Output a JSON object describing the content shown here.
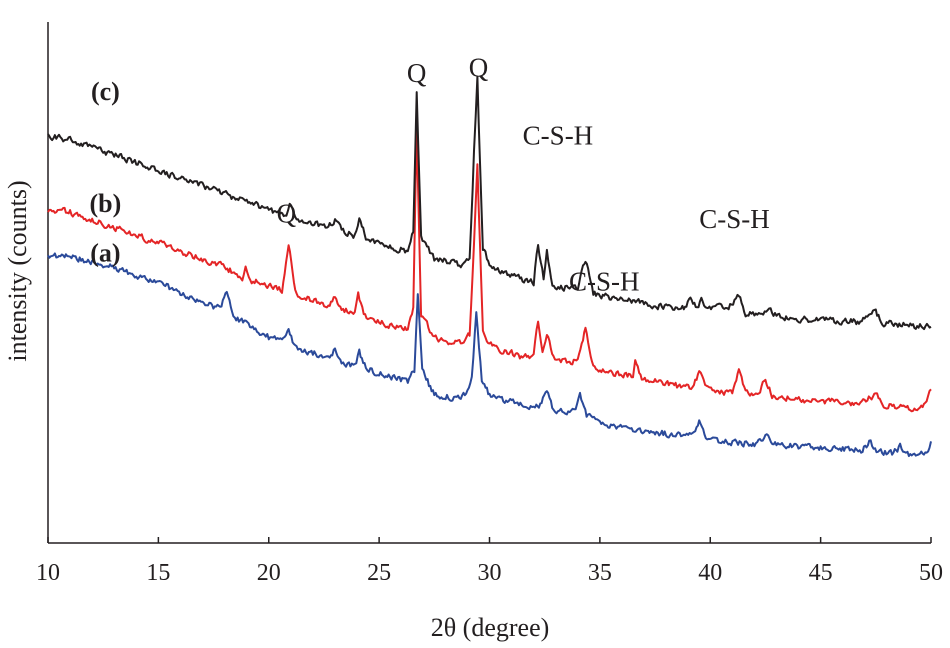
{
  "chart_data": {
    "type": "line",
    "title": "",
    "xlabel": "2θ (degree)",
    "ylabel": "intensity (counts)",
    "xlim": [
      10,
      50
    ],
    "ylim": [
      0,
      100
    ],
    "xticks": [
      10,
      15,
      20,
      25,
      30,
      35,
      40,
      45,
      50
    ],
    "grid": false,
    "legend": "none",
    "series": [
      {
        "name": "(a)",
        "color": "#2b4a9a",
        "points": [
          [
            10,
            55
          ],
          [
            11,
            55
          ],
          [
            12,
            54
          ],
          [
            13,
            53
          ],
          [
            14,
            51
          ],
          [
            15,
            50
          ],
          [
            16,
            48
          ],
          [
            17,
            46
          ],
          [
            17.8,
            45
          ],
          [
            18.1,
            48
          ],
          [
            18.4,
            43
          ],
          [
            18.9,
            42.5
          ],
          [
            19.4,
            41
          ],
          [
            20,
            39.5
          ],
          [
            20.6,
            38.5
          ],
          [
            20.9,
            41
          ],
          [
            21.2,
            37.5
          ],
          [
            22,
            36.5
          ],
          [
            22.7,
            35.5
          ],
          [
            23,
            37
          ],
          [
            23.3,
            34.8
          ],
          [
            23.9,
            34
          ],
          [
            24.1,
            36.5
          ],
          [
            24.4,
            33.5
          ],
          [
            25,
            32.5
          ],
          [
            25.8,
            31.5
          ],
          [
            26.3,
            31
          ],
          [
            26.6,
            33
          ],
          [
            26.75,
            48
          ],
          [
            26.95,
            33
          ],
          [
            27.5,
            28.5
          ],
          [
            28.2,
            28
          ],
          [
            28.7,
            28.3
          ],
          [
            29,
            28.8
          ],
          [
            29.2,
            32
          ],
          [
            29.4,
            44
          ],
          [
            29.65,
            31
          ],
          [
            30,
            28.5
          ],
          [
            30.5,
            27.5
          ],
          [
            31,
            27
          ],
          [
            31.6,
            26.5
          ],
          [
            32,
            26
          ],
          [
            32.3,
            26.5
          ],
          [
            32.6,
            29
          ],
          [
            32.9,
            25.5
          ],
          [
            33.5,
            25
          ],
          [
            33.9,
            25.5
          ],
          [
            34.1,
            28.5
          ],
          [
            34.4,
            24.5
          ],
          [
            35,
            23.5
          ],
          [
            35.5,
            22.5
          ],
          [
            36,
            22.2
          ],
          [
            36.5,
            21.8
          ],
          [
            37,
            21.5
          ],
          [
            38,
            21
          ],
          [
            38.8,
            20.8
          ],
          [
            39.2,
            20.5
          ],
          [
            39.5,
            23
          ],
          [
            39.8,
            20.2
          ],
          [
            40.5,
            19.5
          ],
          [
            41.2,
            19.3
          ],
          [
            42,
            19
          ],
          [
            42.5,
            20.5
          ],
          [
            43,
            18.8
          ],
          [
            44,
            18.5
          ],
          [
            45,
            18.2
          ],
          [
            46,
            18
          ],
          [
            46.9,
            17.8
          ],
          [
            47.2,
            19.5
          ],
          [
            47.6,
            17.6
          ],
          [
            48.3,
            17.3
          ],
          [
            48.6,
            18.5
          ],
          [
            49,
            17.2
          ],
          [
            49.5,
            17
          ],
          [
            49.8,
            17.2
          ],
          [
            50,
            19.5
          ]
        ]
      },
      {
        "name": "(b)",
        "color": "#e42526",
        "points": [
          [
            10,
            64
          ],
          [
            11,
            63.5
          ],
          [
            12,
            62
          ],
          [
            13,
            60.5
          ],
          [
            14,
            59
          ],
          [
            15,
            57.5
          ],
          [
            16,
            56
          ],
          [
            17,
            54.5
          ],
          [
            18,
            53
          ],
          [
            18.8,
            51
          ],
          [
            18.95,
            53.5
          ],
          [
            19.1,
            50.5
          ],
          [
            20,
            49.5
          ],
          [
            20.6,
            48.5
          ],
          [
            20.9,
            57.5
          ],
          [
            21.2,
            48
          ],
          [
            22,
            46.5
          ],
          [
            22.7,
            45.5
          ],
          [
            23,
            47
          ],
          [
            23.3,
            45
          ],
          [
            23.9,
            44
          ],
          [
            24.05,
            48.5
          ],
          [
            24.3,
            43.5
          ],
          [
            25,
            42.5
          ],
          [
            25.8,
            41.5
          ],
          [
            26.3,
            41
          ],
          [
            26.55,
            45
          ],
          [
            26.7,
            81
          ],
          [
            26.9,
            44
          ],
          [
            27.5,
            39.5
          ],
          [
            28.2,
            38.5
          ],
          [
            28.7,
            38.5
          ],
          [
            29.1,
            40
          ],
          [
            29.3,
            57
          ],
          [
            29.45,
            72.5
          ],
          [
            29.7,
            41
          ],
          [
            30,
            38
          ],
          [
            30.5,
            37
          ],
          [
            31,
            36.5
          ],
          [
            31.5,
            35.5
          ],
          [
            32,
            36
          ],
          [
            32.2,
            42.5
          ],
          [
            32.4,
            37
          ],
          [
            32.6,
            40.5
          ],
          [
            32.9,
            35.5
          ],
          [
            33.5,
            35
          ],
          [
            34,
            34.8
          ],
          [
            34.35,
            41
          ],
          [
            34.7,
            34
          ],
          [
            35.5,
            32.5
          ],
          [
            36,
            32.2
          ],
          [
            36.5,
            32
          ],
          [
            36.6,
            34.5
          ],
          [
            36.9,
            31.5
          ],
          [
            37.5,
            31
          ],
          [
            38,
            30.5
          ],
          [
            38.8,
            30
          ],
          [
            39.2,
            29.8
          ],
          [
            39.5,
            32.5
          ],
          [
            39.9,
            29.5
          ],
          [
            40.5,
            29
          ],
          [
            41,
            28.8
          ],
          [
            41.3,
            33
          ],
          [
            41.6,
            28.6
          ],
          [
            42.2,
            28.4
          ],
          [
            42.5,
            31.5
          ],
          [
            42.8,
            28.2
          ],
          [
            43.5,
            27.8
          ],
          [
            44.2,
            27.5
          ],
          [
            45,
            27.2
          ],
          [
            46,
            27
          ],
          [
            46.8,
            26.8
          ],
          [
            47.5,
            28.5
          ],
          [
            47.8,
            26.5
          ],
          [
            48.5,
            26.3
          ],
          [
            49,
            26.1
          ],
          [
            49.5,
            25.8
          ],
          [
            49.8,
            26.5
          ],
          [
            50,
            29.5
          ]
        ]
      },
      {
        "name": "(c)",
        "color": "#231f20",
        "points": [
          [
            10,
            78
          ],
          [
            11,
            77.5
          ],
          [
            12,
            76
          ],
          [
            13,
            74.5
          ],
          [
            14,
            73
          ],
          [
            15,
            71.5
          ],
          [
            16,
            70
          ],
          [
            17,
            68.5
          ],
          [
            18,
            67
          ],
          [
            19,
            65.5
          ],
          [
            20,
            64
          ],
          [
            20.8,
            63
          ],
          [
            20.95,
            65
          ],
          [
            21.2,
            62.5
          ],
          [
            22,
            61.5
          ],
          [
            22.7,
            60.5
          ],
          [
            23,
            62
          ],
          [
            23.3,
            60
          ],
          [
            23.9,
            59
          ],
          [
            24.1,
            62.5
          ],
          [
            24.4,
            58.5
          ],
          [
            25,
            57.5
          ],
          [
            25.8,
            56.5
          ],
          [
            26.3,
            56
          ],
          [
            26.55,
            60
          ],
          [
            26.7,
            86
          ],
          [
            26.9,
            59
          ],
          [
            27.5,
            54.5
          ],
          [
            28.2,
            54
          ],
          [
            28.7,
            53.5
          ],
          [
            29.1,
            55
          ],
          [
            29.3,
            75
          ],
          [
            29.45,
            89
          ],
          [
            29.7,
            57
          ],
          [
            30,
            53
          ],
          [
            30.5,
            52
          ],
          [
            31,
            51.5
          ],
          [
            31.5,
            50.5
          ],
          [
            32,
            50
          ],
          [
            32.2,
            57.5
          ],
          [
            32.45,
            51
          ],
          [
            32.6,
            56
          ],
          [
            32.85,
            49.5
          ],
          [
            33.5,
            49
          ],
          [
            34,
            48.8
          ],
          [
            34.35,
            54.5
          ],
          [
            34.7,
            48
          ],
          [
            35.5,
            47
          ],
          [
            36,
            46.7
          ],
          [
            36.5,
            46.5
          ],
          [
            37,
            46
          ],
          [
            37.5,
            45.5
          ],
          [
            38,
            45.2
          ],
          [
            38.8,
            45
          ],
          [
            39.1,
            46.5
          ],
          [
            39.4,
            45
          ],
          [
            39.6,
            47
          ],
          [
            39.9,
            44.8
          ],
          [
            40.3,
            46
          ],
          [
            40.7,
            44.5
          ],
          [
            41.3,
            47.5
          ],
          [
            41.6,
            44.2
          ],
          [
            42.2,
            43.8
          ],
          [
            42.6,
            45
          ],
          [
            43,
            43.5
          ],
          [
            43.5,
            43.2
          ],
          [
            44.2,
            43
          ],
          [
            45,
            42.8
          ],
          [
            46,
            42.6
          ],
          [
            46.8,
            42.4
          ],
          [
            47.5,
            44.5
          ],
          [
            47.8,
            42.2
          ],
          [
            48.5,
            42
          ],
          [
            49,
            41.8
          ],
          [
            49.5,
            41.6
          ],
          [
            50,
            41.5
          ]
        ]
      }
    ],
    "series_labels": [
      {
        "text": "(a)",
        "x": 12.6,
        "y": 54
      },
      {
        "text": "(b)",
        "x": 12.6,
        "y": 63.5
      },
      {
        "text": "(c)",
        "x": 12.6,
        "y": 85
      }
    ],
    "annotations": [
      {
        "text": "Q",
        "x": 26.7,
        "y": 88.5
      },
      {
        "text": "Q",
        "x": 29.5,
        "y": 89.5
      },
      {
        "text": "Q",
        "x": 20.8,
        "y": 61.5
      },
      {
        "text": "C-S-H",
        "x": 33.1,
        "y": 76.5
      },
      {
        "text": "C-S-H",
        "x": 35.2,
        "y": 48.5
      },
      {
        "text": "C-S-H",
        "x": 41.1,
        "y": 60.5
      }
    ]
  }
}
